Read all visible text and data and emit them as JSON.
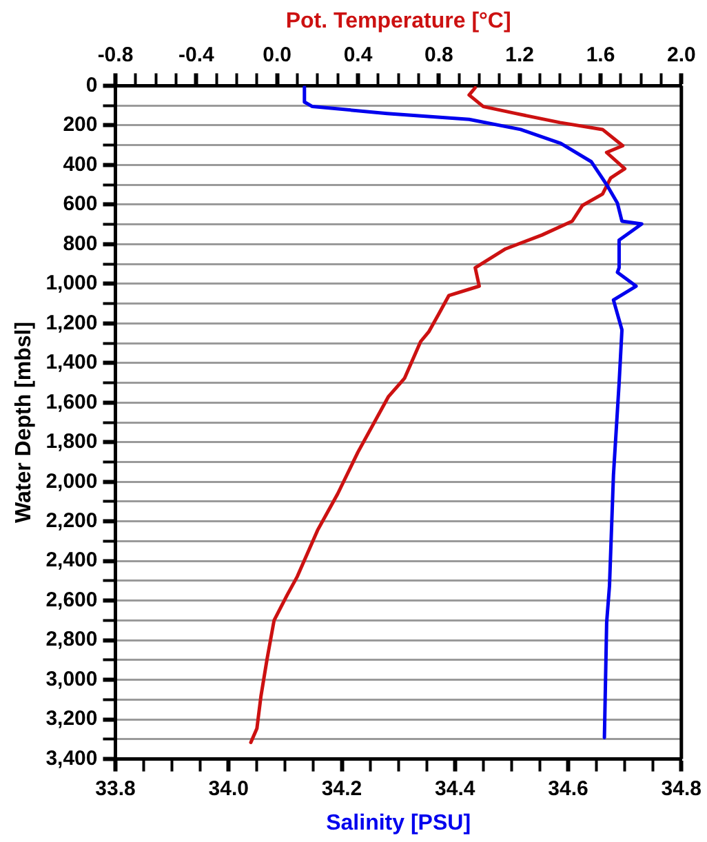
{
  "chart_data": {
    "type": "line",
    "xlabel": "Salinity [PSU]",
    "x2label": "Pot. Temperature [°C]",
    "ylabel": "Water Depth [mbsl]",
    "xlim": [
      33.8,
      34.8
    ],
    "xticks": [
      33.8,
      {
        "value": 33.85,
        "label": null
      },
      {
        "value": 33.9,
        "label": null
      },
      {
        "value": 33.95,
        "label": null
      },
      {
        "value": 34.0,
        "label": "34.0"
      },
      {
        "value": 34.05,
        "label": null
      },
      {
        "value": 34.1,
        "label": null
      },
      {
        "value": 34.15,
        "label": null
      },
      34.2,
      {
        "value": 34.25,
        "label": null
      },
      {
        "value": 34.3,
        "label": null
      },
      {
        "value": 34.35,
        "label": null
      },
      34.4,
      {
        "value": 34.45,
        "label": null
      },
      {
        "value": 34.5,
        "label": null
      },
      {
        "value": 34.55,
        "label": null
      },
      34.6,
      {
        "value": 34.65,
        "label": null
      },
      {
        "value": 34.7,
        "label": null
      },
      {
        "value": 34.75,
        "label": null
      },
      34.8
    ],
    "x2lim": [
      -0.8,
      2.0
    ],
    "x2ticks": [
      {
        "value": -0.8,
        "label": "-0.8"
      },
      {
        "value": -0.7,
        "label": null
      },
      {
        "value": -0.6,
        "label": null
      },
      {
        "value": -0.5,
        "label": null
      },
      {
        "value": -0.4,
        "label": "-0.4"
      },
      {
        "value": -0.3,
        "label": null
      },
      {
        "value": -0.2,
        "label": null
      },
      {
        "value": -0.1,
        "label": null
      },
      {
        "value": 0,
        "label": "0.0"
      },
      {
        "value": 0.1,
        "label": null
      },
      {
        "value": 0.2,
        "label": null
      },
      {
        "value": 0.3,
        "label": null
      },
      0.4,
      {
        "value": 0.5,
        "label": null
      },
      {
        "value": 0.6,
        "label": null
      },
      {
        "value": 0.7,
        "label": null
      },
      0.8,
      {
        "value": 0.9,
        "label": null
      },
      {
        "value": 1.0,
        "label": null
      },
      {
        "value": 1.1,
        "label": null
      },
      1.2,
      {
        "value": 1.3,
        "label": null
      },
      {
        "value": 1.4,
        "label": null
      },
      {
        "value": 1.5,
        "label": null
      },
      1.6,
      {
        "value": 1.7,
        "label": null
      },
      {
        "value": 1.8,
        "label": null
      },
      {
        "value": 1.9,
        "label": null
      },
      {
        "value": 2.0,
        "label": "2.0"
      }
    ],
    "ylim": [
      3400,
      0
    ],
    "yticks": [
      0,
      {
        "value": 100,
        "label": null
      },
      200,
      {
        "value": 300,
        "label": null
      },
      400,
      {
        "value": 500,
        "label": null
      },
      600,
      {
        "value": 700,
        "label": null
      },
      800,
      {
        "value": 900,
        "label": null
      },
      {
        "value": 1000,
        "label": "1,000"
      },
      {
        "value": 1100,
        "label": null
      },
      {
        "value": 1200,
        "label": "1,200"
      },
      {
        "value": 1300,
        "label": null
      },
      {
        "value": 1400,
        "label": "1,400"
      },
      {
        "value": 1500,
        "label": null
      },
      {
        "value": 1600,
        "label": "1,600"
      },
      {
        "value": 1700,
        "label": null
      },
      {
        "value": 1800,
        "label": "1,800"
      },
      {
        "value": 1900,
        "label": null
      },
      {
        "value": 2000,
        "label": "2,000"
      },
      {
        "value": 2100,
        "label": null
      },
      {
        "value": 2200,
        "label": "2,200"
      },
      {
        "value": 2300,
        "label": null
      },
      {
        "value": 2400,
        "label": "2,400"
      },
      {
        "value": 2500,
        "label": null
      },
      {
        "value": 2600,
        "label": "2,600"
      },
      {
        "value": 2700,
        "label": null
      },
      {
        "value": 2800,
        "label": "2,800"
      },
      {
        "value": 2900,
        "label": null
      },
      {
        "value": 3000,
        "label": "3,000"
      },
      {
        "value": 3100,
        "label": null
      },
      {
        "value": 3200,
        "label": "3,200"
      },
      {
        "value": 3300,
        "label": null
      },
      {
        "value": 3400,
        "label": "3,400"
      }
    ],
    "grid": "y",
    "marker": "none",
    "line_style": "solid",
    "series": [
      {
        "color": "#0000ee",
        "x": [
          34.134,
          34.134,
          34.148,
          34.28,
          34.425,
          34.516,
          34.587,
          34.641,
          34.668,
          34.687,
          34.695,
          34.73,
          34.69,
          34.69,
          34.687,
          34.72,
          34.68,
          34.695,
          34.69,
          34.68,
          34.673,
          34.668,
          34.664
        ],
        "values": [
          5,
          82,
          105,
          140,
          170,
          221,
          291,
          384,
          500,
          593,
          684,
          698,
          780,
          919,
          942,
          1012,
          1082,
          1233,
          1501,
          1966,
          2525,
          2710,
          3292
        ]
      },
      {
        "color": "#cc1111",
        "axis": "x2",
        "x": [
          0.98,
          0.95,
          1.02,
          1.18,
          1.4,
          1.61,
          1.71,
          1.63,
          1.72,
          1.65,
          1.61,
          1.51,
          1.46,
          1.31,
          1.13,
          0.98,
          1.0,
          0.85,
          0.8,
          0.75,
          0.71,
          0.63,
          0.55,
          0.4,
          0.3,
          0.2,
          0.1,
          0.05,
          -0.015,
          -0.05,
          -0.08,
          -0.1,
          -0.13
        ],
        "values": [
          10,
          47,
          105,
          140,
          186,
          221,
          303,
          337,
          419,
          466,
          547,
          605,
          684,
          754,
          824,
          919,
          1012,
          1059,
          1152,
          1243,
          1292,
          1478,
          1571,
          1850,
          2060,
          2245,
          2478,
          2571,
          2700,
          2897,
          3083,
          3246,
          3316
        ]
      }
    ]
  }
}
